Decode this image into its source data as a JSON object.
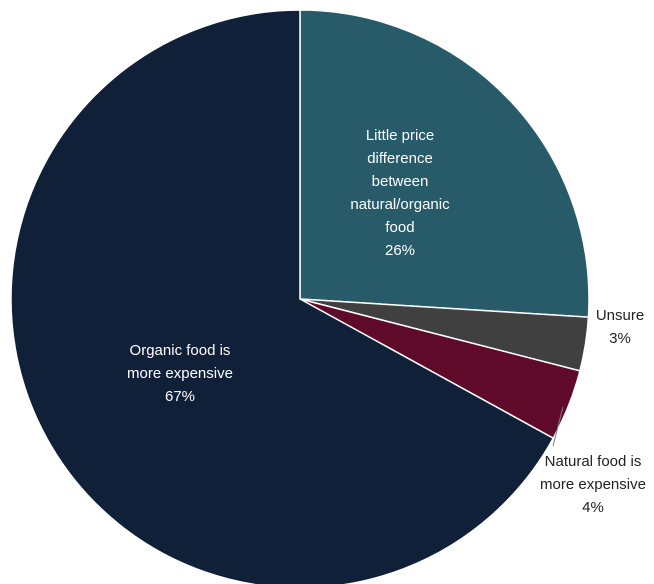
{
  "chart_data": {
    "type": "pie",
    "title": "",
    "slices": [
      {
        "key": "little-price-difference",
        "label_lines": [
          "Little price",
          "difference",
          "between",
          "natural/organic",
          "food"
        ],
        "percent_label": "26%",
        "value": 26,
        "color": "#275b6a"
      },
      {
        "key": "unsure",
        "label_lines": [
          "Unsure"
        ],
        "percent_label": "3%",
        "value": 3,
        "color": "#404040"
      },
      {
        "key": "natural-food-more-expensive",
        "label_lines": [
          "Natural food is",
          "more expensive"
        ],
        "percent_label": "4%",
        "value": 4,
        "color": "#600a2a"
      },
      {
        "key": "organic-food-more-expensive",
        "label_lines": [
          "Organic food is",
          "more expensive"
        ],
        "percent_label": "67%",
        "value": 67,
        "color": "#0f2038"
      }
    ]
  }
}
